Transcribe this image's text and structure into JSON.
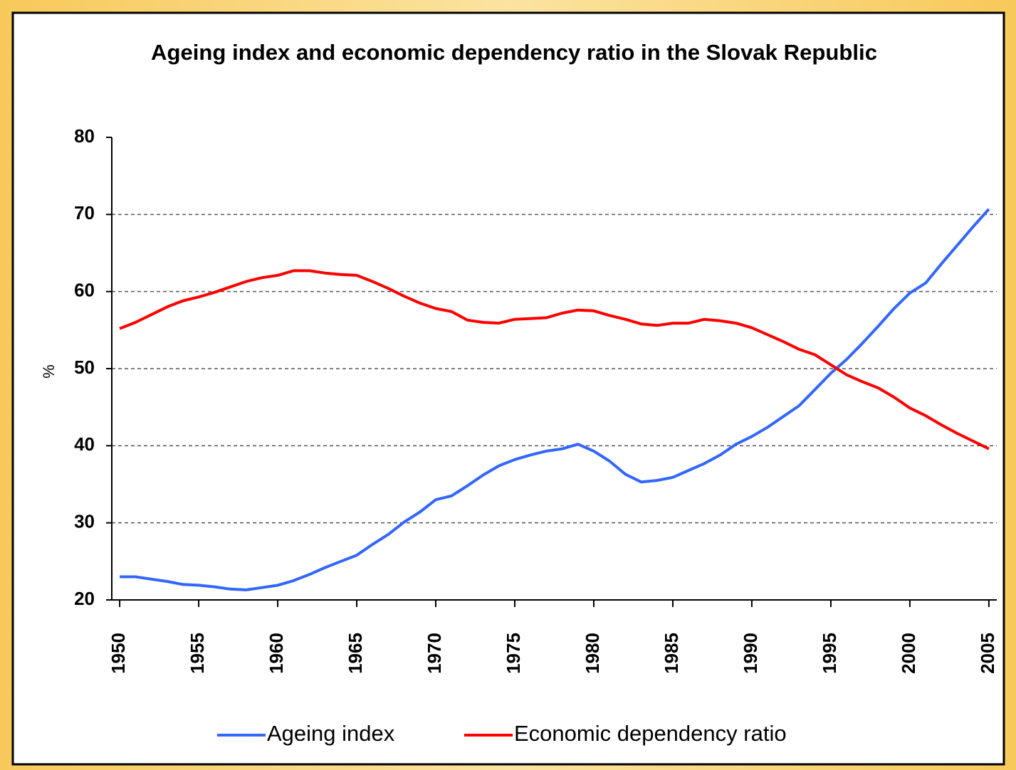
{
  "chart_data": {
    "type": "line",
    "title": "Ageing index and economic dependency ratio in the Slovak Republic",
    "y_label": "%",
    "x": [
      1950,
      1951,
      1952,
      1953,
      1954,
      1955,
      1956,
      1957,
      1958,
      1959,
      1960,
      1961,
      1962,
      1963,
      1964,
      1965,
      1966,
      1967,
      1968,
      1969,
      1970,
      1971,
      1972,
      1973,
      1974,
      1975,
      1976,
      1977,
      1978,
      1979,
      1980,
      1981,
      1982,
      1983,
      1984,
      1985,
      1986,
      1987,
      1988,
      1989,
      1990,
      1991,
      1992,
      1993,
      1994,
      1995,
      1996,
      1997,
      1998,
      1999,
      2000,
      2001,
      2002,
      2003,
      2004,
      2005
    ],
    "series": [
      {
        "name": "Ageing index",
        "color": "#3366ff",
        "values": [
          23,
          23,
          22.7,
          22.4,
          22,
          21.9,
          21.7,
          21.4,
          21.3,
          21.6,
          21.9,
          22.5,
          23.3,
          24.2,
          25,
          25.8,
          27.2,
          28.5,
          30.1,
          31.4,
          33,
          33.5,
          34.8,
          36.2,
          37.4,
          38.2,
          38.8,
          39.3,
          39.6,
          40.2,
          39.3,
          38,
          36.3,
          35.3,
          35.5,
          35.9,
          36.8,
          37.7,
          38.8,
          40.2,
          41.2,
          42.4,
          43.8,
          45.2,
          47.3,
          49.4,
          51.2,
          53.3,
          55.5,
          57.8,
          59.8,
          61.1,
          63.6,
          66,
          68.4,
          70.7
        ]
      },
      {
        "name": "Economic dependency ratio",
        "color": "#ff0000",
        "values": [
          55.2,
          56,
          57,
          58,
          58.8,
          59.3,
          59.9,
          60.6,
          61.3,
          61.8,
          62.1,
          62.7,
          62.7,
          62.4,
          62.2,
          62.1,
          61.3,
          60.4,
          59.4,
          58.5,
          57.8,
          57.4,
          56.3,
          56,
          55.9,
          56.4,
          56.5,
          56.6,
          57.2,
          57.6,
          57.5,
          56.9,
          56.4,
          55.8,
          55.6,
          55.9,
          55.9,
          56.4,
          56.2,
          55.9,
          55.3,
          54.4,
          53.5,
          52.5,
          51.8,
          50.5,
          49.2,
          48.3,
          47.5,
          46.3,
          44.9,
          43.9,
          42.7,
          41.6,
          40.6,
          39.6
        ]
      }
    ],
    "xlim": [
      1949.5,
      2005.5
    ],
    "xticks": [
      1950,
      1955,
      1960,
      1965,
      1970,
      1975,
      1980,
      1985,
      1990,
      1995,
      2000,
      2005
    ],
    "ylim": [
      20,
      80
    ],
    "yticks": [
      20,
      30,
      40,
      50,
      60,
      70,
      80
    ],
    "grid": true,
    "legend": "bottom"
  }
}
